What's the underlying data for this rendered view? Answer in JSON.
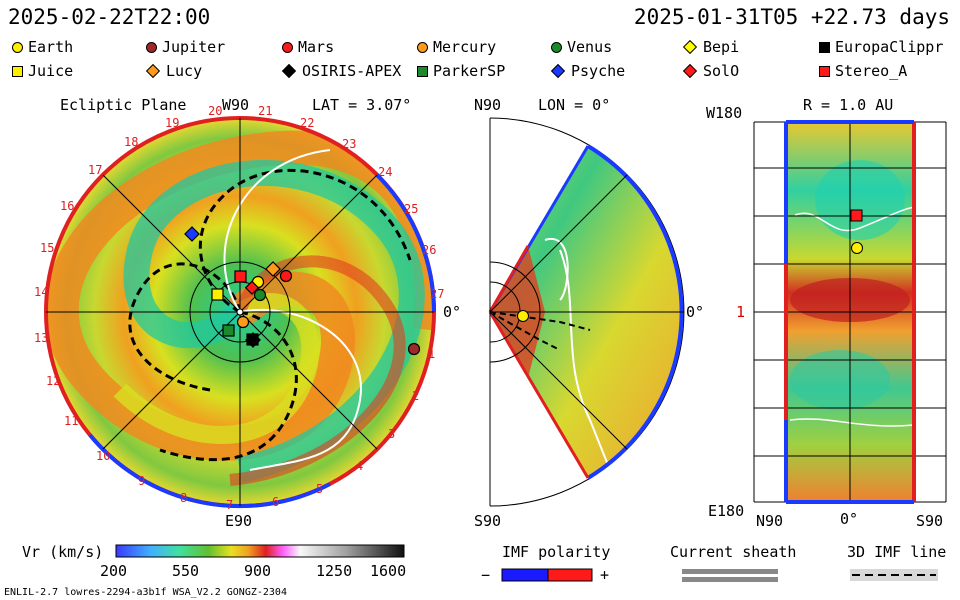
{
  "header": {
    "datetime_left": "2025-02-22T22:00",
    "datetime_right": "2025-01-31T05 +22.73 days"
  },
  "legend": [
    {
      "name": "Earth",
      "shape": "circle",
      "color": "#ffee00"
    },
    {
      "name": "Jupiter",
      "shape": "circle",
      "color": "#a02828"
    },
    {
      "name": "Mars",
      "shape": "circle",
      "color": "#ff1a1a"
    },
    {
      "name": "Mercury",
      "shape": "circle",
      "color": "#ff9a1a"
    },
    {
      "name": "Venus",
      "shape": "circle",
      "color": "#1a8a2a"
    },
    {
      "name": "Bepi",
      "shape": "diamond",
      "color": "#ffff00"
    },
    {
      "name": "EuropaClippr",
      "shape": "square",
      "color": "#000000"
    },
    {
      "name": "Juice",
      "shape": "square",
      "color": "#ffee00"
    },
    {
      "name": "Lucy",
      "shape": "diamond",
      "color": "#ff9a1a"
    },
    {
      "name": "OSIRIS-APEX",
      "shape": "diamond",
      "color": "#000000"
    },
    {
      "name": "ParkerSP",
      "shape": "square",
      "color": "#1a8a2a"
    },
    {
      "name": "Psyche",
      "shape": "diamond",
      "color": "#1a3aff"
    },
    {
      "name": "SolO",
      "shape": "diamond",
      "color": "#ff1a1a"
    },
    {
      "name": "Stereo_A",
      "shape": "square",
      "color": "#ff1a1a"
    }
  ],
  "panels": {
    "ecliptic": {
      "title": "Ecliptic Plane",
      "top_label": "W90",
      "lat_label": "LAT = 3.07°",
      "right_label": "0°",
      "bottom_label": "E90",
      "rim_ticks": [
        "20",
        "21",
        "22",
        "23",
        "24",
        "25",
        "26",
        "27",
        "1",
        "2",
        "3",
        "4",
        "5",
        "6",
        "7",
        "8",
        "9",
        "10",
        "11",
        "12",
        "13",
        "14",
        "15",
        "16",
        "17",
        "18",
        "19"
      ]
    },
    "meridional": {
      "top_label": "N90",
      "lon_label": "LON = 0°",
      "right_label": "0°",
      "bottom_label": "S90"
    },
    "radial": {
      "title": "R = 1.0 AU",
      "top_left": "W180",
      "mid_left": "1",
      "bottom_left": "E180",
      "x_left": "N90",
      "x_mid": "0°",
      "x_right": "S90"
    }
  },
  "colorbar": {
    "label": "Vr (km/s)",
    "ticks": [
      "200",
      "550",
      "900",
      "1250",
      "1600"
    ]
  },
  "imf": {
    "polarity_label": "IMF polarity",
    "minus": "−",
    "plus": "+",
    "minus_color": "#1a1aff",
    "plus_color": "#ff1a1a",
    "sheath_label": "Current sheath",
    "line_label": "3D IMF line"
  },
  "footer": {
    "left": "ENLIL-2.7 lowres-2294-a3b1f WSA_V2.2 GONGZ-2304"
  }
}
